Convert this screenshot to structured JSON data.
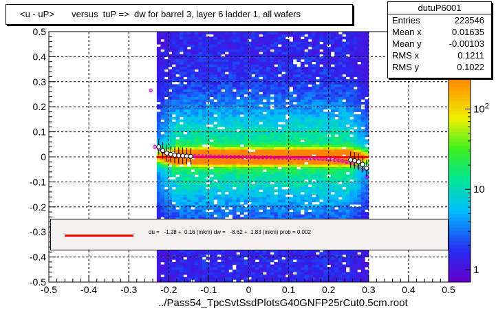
{
  "title": "<u - uP>       versus  tuP =>  dw for barrel 3, layer 6 ladder 1, all wafers",
  "stats": {
    "name": "dutuP6001",
    "rows": [
      {
        "label": "Entries",
        "value": "223546"
      },
      {
        "label": "Mean x",
        "value": "0.01635"
      },
      {
        "label": "Mean y",
        "value": "-0.00103"
      },
      {
        "label": "RMS x",
        "value": "0.1211"
      },
      {
        "label": "RMS y",
        "value": "0.1022"
      }
    ]
  },
  "fit_text": "du =   -1.28 +  0.16 (mkm) dw =   -8.62 +  1.83 (mkm) prob = 0.002",
  "footer": "../Pass54_TpcSvtSsdPlotsG40GNFP25rCut0.5cm.root",
  "colors": {
    "fit_line": "#ff0000",
    "profile_marker": "#cc00cc"
  },
  "chart_data": {
    "type": "heatmap",
    "xlim": [
      -0.5,
      0.5
    ],
    "ylim": [
      -0.5,
      0.5
    ],
    "x_ticks": [
      "-0.5",
      "-0.4",
      "-0.3",
      "-0.2",
      "-0.1",
      "0",
      "0.1",
      "0.2",
      "0.3",
      "0.4",
      "0.5"
    ],
    "y_ticks": [
      "-0.5",
      "-0.4",
      "-0.3",
      "-0.2",
      "-0.1",
      "0",
      "0.1",
      "0.2",
      "0.3",
      "0.4",
      "0.5"
    ],
    "x_tick_values": [
      -0.5,
      -0.4,
      -0.3,
      -0.2,
      -0.1,
      0,
      0.1,
      0.2,
      0.3,
      0.4,
      0.5
    ],
    "y_tick_values": [
      -0.5,
      -0.4,
      -0.3,
      -0.2,
      -0.1,
      0,
      0.1,
      0.2,
      0.3,
      0.4,
      0.5
    ],
    "data_x_range": [
      -0.23,
      0.3
    ],
    "colorbar": {
      "scale": "log",
      "labels": [
        "1",
        "10",
        "10^2"
      ],
      "label_values": [
        1,
        10,
        100
      ],
      "range": [
        0.7,
        250
      ]
    },
    "grid": true,
    "fit_line": {
      "x": [
        -0.23,
        0.3
      ],
      "y": [
        -0.0013,
        -0.0013
      ]
    },
    "profile_points": {
      "x": [
        -0.245,
        -0.235,
        -0.225,
        -0.215,
        -0.205,
        -0.195,
        -0.185,
        -0.175,
        -0.165,
        -0.155,
        -0.145,
        -0.135,
        -0.125,
        -0.115,
        -0.105,
        -0.095,
        -0.085,
        -0.075,
        -0.065,
        -0.055,
        -0.045,
        -0.035,
        -0.025,
        -0.015,
        -0.005,
        0.005,
        0.015,
        0.025,
        0.035,
        0.045,
        0.055,
        0.065,
        0.075,
        0.085,
        0.095,
        0.105,
        0.115,
        0.125,
        0.135,
        0.145,
        0.155,
        0.165,
        0.175,
        0.185,
        0.195,
        0.205,
        0.215,
        0.225,
        0.235,
        0.245,
        0.255,
        0.265,
        0.275,
        0.285,
        0.295
      ],
      "y": [
        0.265,
        0.04,
        0.03,
        0.02,
        0.015,
        0.01,
        0.008,
        0.006,
        0.005,
        0.004,
        0.004,
        0.003,
        0.003,
        0.002,
        0.002,
        0.002,
        0.001,
        0.001,
        0.001,
        0.0,
        0.0,
        0.0,
        0.0,
        -0.001,
        -0.001,
        -0.001,
        -0.001,
        -0.002,
        -0.002,
        -0.002,
        -0.002,
        -0.003,
        -0.003,
        -0.003,
        -0.003,
        -0.004,
        -0.004,
        -0.004,
        -0.005,
        -0.005,
        -0.006,
        -0.006,
        -0.007,
        -0.008,
        -0.009,
        -0.01,
        -0.012,
        -0.014,
        -0.016,
        -0.02,
        -0.025,
        -0.03,
        -0.04,
        -0.05,
        -0.08
      ]
    },
    "open_points": {
      "x": [
        -0.225,
        -0.215,
        -0.205,
        -0.195,
        -0.185,
        -0.175,
        -0.165,
        -0.155,
        -0.145,
        0.255,
        0.265,
        0.275,
        0.285,
        0.295
      ],
      "y": [
        0.04,
        0.025,
        0.015,
        0.01,
        0.007,
        0.005,
        0.004,
        0.003,
        0.002,
        -0.012,
        -0.015,
        -0.02,
        -0.03,
        -0.045
      ]
    }
  }
}
